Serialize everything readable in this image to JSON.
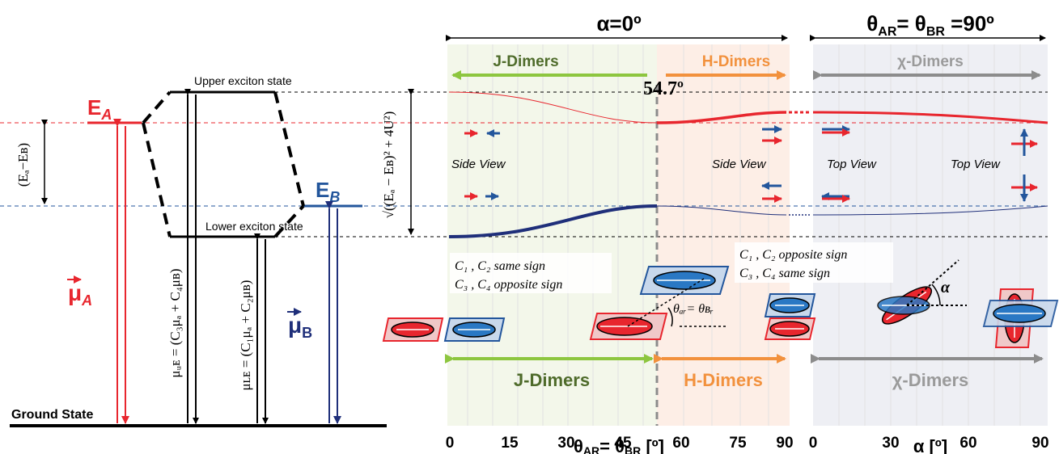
{
  "colors": {
    "red": "#e8262e",
    "navy": "#1f2f7a",
    "blue": "#23569c",
    "green": "#8dc63f",
    "dark_green": "#4e6b2a",
    "orange": "#f2913d",
    "gray": "#8c8c8c",
    "black": "#000000"
  },
  "energy": {
    "ea_main": "E",
    "ea_sub": "A",
    "eb_main": "E",
    "eb_sub": "B",
    "upper_state": "Upper exciton state",
    "lower_state": "Lower exciton state",
    "ground_state": "Ground State",
    "gap_label": "(Eₐ−Eʙ)",
    "mu_a_main": "μ",
    "mu_a_sub": "A",
    "mu_b_main": "μ",
    "mu_b_sub": "B",
    "mu_ue_label": "μᵤᴇ = (C₃μₐ + C₄μʙ)",
    "mu_le_label": "μʟᴇ = (C₁μₐ + C₂μʙ)",
    "splitting_label": "√((Eₐ − Eʙ)² + 4U²)"
  },
  "left_panel": {
    "alpha_title": "α=0º",
    "j_dimers": "J-Dimers",
    "h_dimers": "H-Dimers",
    "magic_angle": "54.7º",
    "side_view_left": "Side View",
    "side_view_right": "Side View",
    "c_text_1": "C₁ , C₂ same sign",
    "c_text_2": "C₃ , C₄ opposite sign",
    "theta_label": "θₐᵣ= θʙᵣ",
    "x_ticks": [
      "0",
      "15",
      "30",
      "45",
      "60",
      "75",
      "90"
    ],
    "x_label_main": "θ",
    "x_label_sub1": "AR",
    "x_label_mid": "= θ",
    "x_label_sub2": "BR",
    "x_label_end": " [º]"
  },
  "right_panel": {
    "title_main": "θ",
    "title_sub1": "AR",
    "title_mid": "= θ",
    "title_sub2": "BR",
    "title_end": " =90º",
    "chi_dimers": "χ-Dimers",
    "top_view_left": "Top View",
    "top_view_right": "Top View",
    "c_text_1": "C₁ , C₂ opposite sign",
    "c_text_2": "C₃ , C₄ same sign",
    "alpha_symbol": "α",
    "x_ticks": [
      "0",
      "30",
      "60",
      "90"
    ],
    "x_label": "α [º]"
  }
}
